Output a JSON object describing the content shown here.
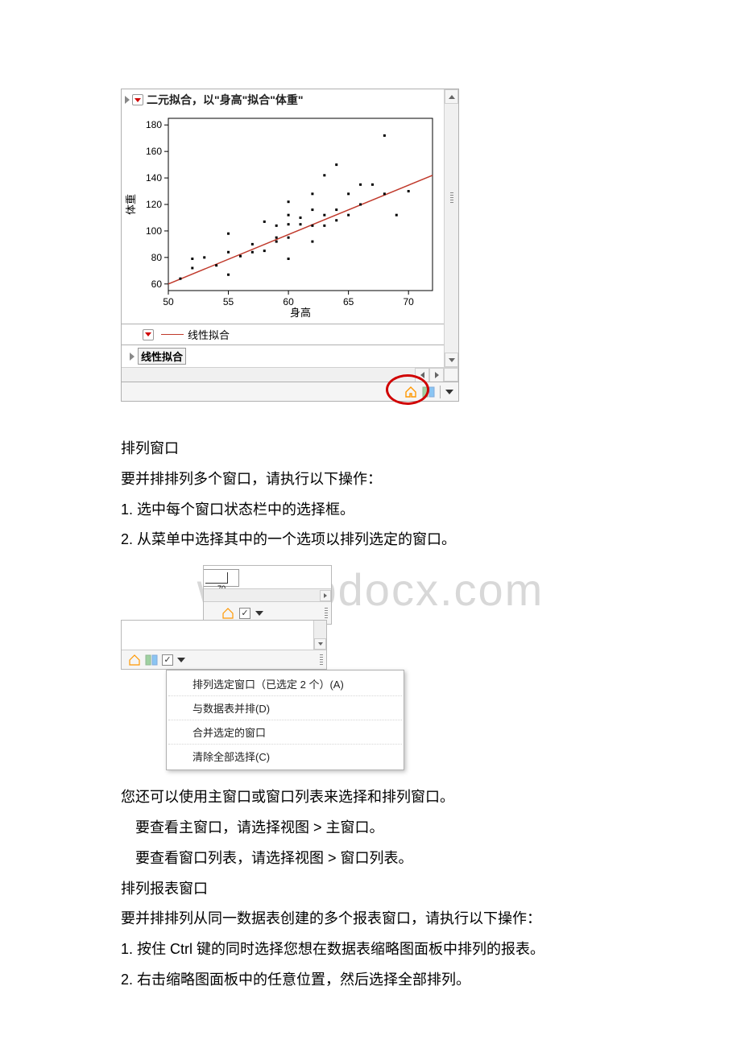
{
  "watermark": "www.bdocx.com",
  "chart": {
    "title_prefix": "二元��合，以",
    "title_full": "二元拟合，以\"身高\"拟合\"体重\"",
    "type": "scatter",
    "xlabel": "身高",
    "ylabel": "体重",
    "xlim": [
      50,
      72
    ],
    "ylim": [
      55,
      185
    ],
    "xticks": [
      50,
      55,
      60,
      65,
      70
    ],
    "yticks": [
      60,
      80,
      100,
      120,
      140,
      160,
      180
    ],
    "label_fontsize": 12,
    "points": [
      [
        51,
        64
      ],
      [
        52,
        72
      ],
      [
        52,
        79
      ],
      [
        53,
        80
      ],
      [
        54,
        74
      ],
      [
        55,
        67
      ],
      [
        55,
        84
      ],
      [
        55,
        98
      ],
      [
        56,
        81
      ],
      [
        57,
        84
      ],
      [
        57,
        90
      ],
      [
        58,
        85
      ],
      [
        58,
        107
      ],
      [
        59,
        92
      ],
      [
        59,
        95
      ],
      [
        59,
        104
      ],
      [
        60,
        79
      ],
      [
        60,
        95
      ],
      [
        60,
        105
      ],
      [
        60,
        112
      ],
      [
        60,
        122
      ],
      [
        61,
        105
      ],
      [
        61,
        110
      ],
      [
        62,
        92
      ],
      [
        62,
        104
      ],
      [
        62,
        116
      ],
      [
        62,
        128
      ],
      [
        63,
        104
      ],
      [
        63,
        112
      ],
      [
        63,
        142
      ],
      [
        64,
        108
      ],
      [
        64,
        116
      ],
      [
        64,
        150
      ],
      [
        65,
        112
      ],
      [
        65,
        128
      ],
      [
        66,
        120
      ],
      [
        66,
        135
      ],
      [
        67,
        135
      ],
      [
        68,
        128
      ],
      [
        68,
        172
      ],
      [
        69,
        112
      ],
      [
        70,
        130
      ]
    ],
    "point_color": "#000000",
    "point_size": 3,
    "fit_line": {
      "x1": 50,
      "y1": 60,
      "x2": 72,
      "y2": 142,
      "color": "#c0392b",
      "width": 1.5
    },
    "background_color": "#ffffff",
    "axis_color": "#000000",
    "legend_label": "线性拟合",
    "sub_section_label": "线性拟合"
  },
  "text": {
    "h1": "排列窗口",
    "p1": "要并排排列多个窗口，请执行以下操作：",
    "li1": "1. 选中每个窗口状态栏中的选择框。",
    "li2": "2. 从菜单中选择其中的一个选项以排列选定的窗口。",
    "p2": "您还可以使用主窗口或窗口列表来选择和排列窗口。",
    "p3": "　要查看主窗口，请选择视图 > 主窗口。",
    "p4": "　要查看窗口列表，请选择视图 > 窗口列表。",
    "h2": "排列报表窗口",
    "p5": "要并排排列从同一数据表创建的多个报表窗口，请执行以下操作：",
    "li3": "1. 按住 Ctrl 键的同时选择您想在数据表缩略图面板中排列的报表。",
    "li4": "2. 右击缩略图面板中的任意位置，然后选择全部排列。"
  },
  "fig2": {
    "axis_tick": "70",
    "menu": {
      "items": [
        "排列选定窗口（已选定 2 个）(A)",
        "与数据表并排(D)",
        "合并选定的窗口",
        "清除全部选择(C)"
      ]
    }
  }
}
